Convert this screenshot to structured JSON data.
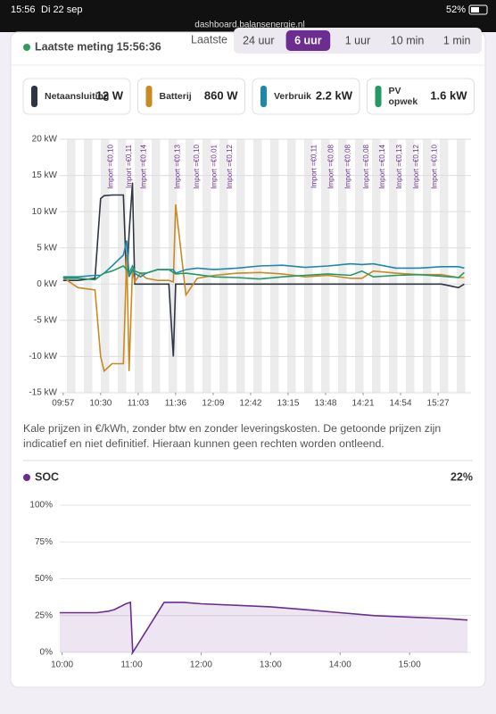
{
  "status_bar": {
    "time": "15:56",
    "date": "Di 22 sep",
    "url": "dashboard.balansenergie.nl",
    "battery": "52%"
  },
  "header": {
    "last_measurement": "Laatste meting 15:56:36",
    "range_label": "Laatste",
    "range_options": [
      "24 uur",
      "6 uur",
      "1 uur",
      "10 min",
      "1 min"
    ],
    "selected": 1
  },
  "note": "Kale prijzen in €/kWh, zonder btw en zonder leveringskosten. De getoonde prijzen zijn indicatief en niet definitief. Hieraan kunnen geen rechten worden ontleend.",
  "chart_data": [
    {
      "type": "line",
      "x": [
        "09:57",
        "10:10",
        "10:25",
        "10:30",
        "10:33",
        "10:40",
        "10:50",
        "10:53",
        "10:55",
        "10:58",
        "11:00",
        "11:05",
        "11:10",
        "11:20",
        "11:30",
        "11:34",
        "11:36",
        "11:45",
        "11:55",
        "12:10",
        "12:30",
        "12:50",
        "13:10",
        "13:30",
        "13:50",
        "14:10",
        "14:20",
        "14:30",
        "14:50",
        "15:10",
        "15:30",
        "15:45",
        "15:50"
      ],
      "xlim": [
        "09:54",
        "15:56"
      ],
      "xticks": [
        "09:57",
        "10:30",
        "11:03",
        "11:36",
        "12:09",
        "12:42",
        "13:15",
        "13:48",
        "14:21",
        "14:54",
        "15:27"
      ],
      "ylim": [
        -15,
        20
      ],
      "yticks": [
        {
          "value": 20,
          "label": "20 kW"
        },
        {
          "value": 15,
          "label": "15 kW"
        },
        {
          "value": 10,
          "label": "10 kW"
        },
        {
          "value": 5,
          "label": "5 kW"
        },
        {
          "value": 0,
          "label": "0 kW"
        },
        {
          "value": -5,
          "label": "-5 kW"
        },
        {
          "value": -10,
          "label": "-10 kW"
        },
        {
          "value": -15,
          "label": "-15 kW"
        }
      ],
      "series": [
        {
          "name": "Netaansluiting",
          "current": "12 W",
          "color": "#2f3542",
          "values": [
            0.5,
            0.5,
            0.8,
            11.8,
            12.2,
            12.3,
            12.3,
            0,
            7,
            14,
            0,
            0,
            0,
            0,
            0,
            -10,
            0,
            0,
            0,
            0,
            0,
            0,
            0,
            0,
            0,
            0,
            0,
            0,
            0,
            0,
            0,
            -0.5,
            0
          ]
        },
        {
          "name": "Batterij",
          "current": "860 W",
          "color": "#c98a21",
          "values": [
            0.9,
            -0.5,
            -0.8,
            -10,
            -12,
            -11,
            -11,
            4,
            -12,
            2,
            0.3,
            1.5,
            0.8,
            0.5,
            0.5,
            0.3,
            11,
            -1.5,
            0.8,
            1.2,
            1.5,
            1.6,
            1.4,
            1,
            1.2,
            0.8,
            0.8,
            1.8,
            1.5,
            1.3,
            1.3,
            0.9,
            0.9
          ]
        },
        {
          "name": "Verbruik",
          "current": "2.2 kW",
          "color": "#1e88a8",
          "values": [
            1,
            1,
            1.2,
            1.2,
            1.5,
            2.5,
            4,
            6,
            1,
            2,
            1.5,
            1,
            1.5,
            2,
            2,
            2,
            1.5,
            2,
            2.2,
            2,
            2.2,
            2.5,
            2.6,
            2.3,
            2.5,
            2.8,
            2.7,
            2.8,
            2.2,
            2.2,
            2.4,
            2.4,
            2.2
          ]
        },
        {
          "name": "PV opwek",
          "current": "1.6 kW",
          "color": "#239a63",
          "values": [
            0.8,
            0.8,
            0.6,
            1.2,
            1.5,
            1.8,
            2.5,
            2,
            1.5,
            2.5,
            1.8,
            1.5,
            1.5,
            2,
            2,
            1.6,
            1.4,
            1.5,
            1.3,
            1,
            0.9,
            0.7,
            1,
            1.2,
            1.4,
            1.2,
            1.8,
            1,
            1.2,
            1.3,
            1.1,
            0.9,
            1.6
          ]
        }
      ],
      "annotations": [
        {
          "x": "10:39",
          "text": "Import =€0,10"
        },
        {
          "x": "10:55",
          "text": "Import =€0,11"
        },
        {
          "x": "11:08",
          "text": "Import =€0,14"
        },
        {
          "x": "11:38",
          "text": "Import =€0,13"
        },
        {
          "x": "11:55",
          "text": "Import =€0,10"
        },
        {
          "x": "12:10",
          "text": "Import =€0,01"
        },
        {
          "x": "12:24",
          "text": "Import =€0,12"
        },
        {
          "x": "13:38",
          "text": "Import =€0,11"
        },
        {
          "x": "13:53",
          "text": "Import =€0,08"
        },
        {
          "x": "14:08",
          "text": "Import =€0,08"
        },
        {
          "x": "14:24",
          "text": "Import =€0,08"
        },
        {
          "x": "14:38",
          "text": "Import =€0,14"
        },
        {
          "x": "14:53",
          "text": "Import =€0,13"
        },
        {
          "x": "15:08",
          "text": "Import =€0,12"
        },
        {
          "x": "15:24",
          "text": "Import =€0,10"
        }
      ]
    },
    {
      "type": "area",
      "title": "SOC",
      "current": "22%",
      "color": "#6b2d8f",
      "x": [
        "09:58",
        "10:30",
        "10:40",
        "10:45",
        "10:50",
        "10:55",
        "10:59",
        "11:01",
        "11:28",
        "11:45",
        "12:00",
        "12:30",
        "13:00",
        "13:30",
        "14:00",
        "14:30",
        "15:00",
        "15:30",
        "15:50"
      ],
      "values": [
        27,
        27,
        28,
        29,
        31,
        33,
        34,
        0,
        34,
        34,
        33,
        32,
        31,
        29,
        27,
        25,
        24,
        23,
        22
      ],
      "xlim": [
        "09:58",
        "15:53"
      ],
      "xticks": [
        "10:00",
        "11:00",
        "12:00",
        "13:00",
        "14:00",
        "15:00"
      ],
      "ylim": [
        0,
        100
      ],
      "yticks": [
        {
          "value": 100,
          "label": "100%"
        },
        {
          "value": 75,
          "label": "75%"
        },
        {
          "value": 50,
          "label": "50%"
        },
        {
          "value": 25,
          "label": "25%"
        },
        {
          "value": 0,
          "label": "0%"
        }
      ]
    }
  ]
}
